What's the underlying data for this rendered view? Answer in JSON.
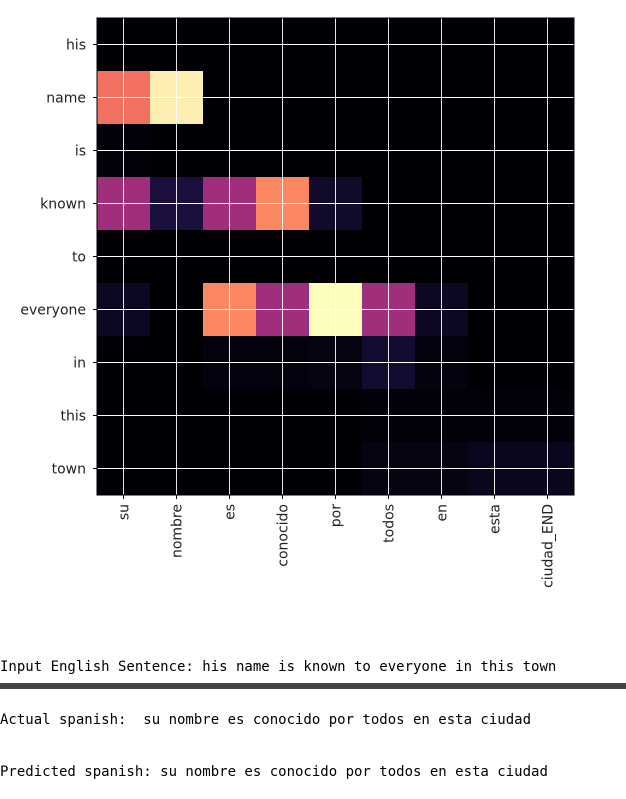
{
  "chart_data": {
    "type": "heatmap",
    "x": [
      "su",
      "nombre",
      "es",
      "conocido",
      "por",
      "todos",
      "en",
      "esta",
      "ciudad_END"
    ],
    "y": [
      "his",
      "name",
      "is",
      "known",
      "to",
      "everyone",
      "in",
      "this",
      "town"
    ],
    "values": [
      [
        0.0,
        0.0,
        0.0,
        0.0,
        0.0,
        0.0,
        0.0,
        0.0,
        0.0
      ],
      [
        0.7,
        0.97,
        0.0,
        0.0,
        0.0,
        0.0,
        0.0,
        0.0,
        0.0
      ],
      [
        0.01,
        0.0,
        0.0,
        0.0,
        0.0,
        0.0,
        0.0,
        0.0,
        0.0
      ],
      [
        0.45,
        0.12,
        0.45,
        0.75,
        0.08,
        0.0,
        0.0,
        0.0,
        0.0
      ],
      [
        0.0,
        0.0,
        0.0,
        0.0,
        0.0,
        0.0,
        0.0,
        0.0,
        0.0
      ],
      [
        0.06,
        0.0,
        0.75,
        0.45,
        1.0,
        0.45,
        0.06,
        0.0,
        0.0
      ],
      [
        0.0,
        0.0,
        0.02,
        0.02,
        0.03,
        0.09,
        0.02,
        0.0,
        0.0
      ],
      [
        0.0,
        0.0,
        0.0,
        0.0,
        0.0,
        0.01,
        0.01,
        0.01,
        0.01
      ],
      [
        0.0,
        0.0,
        0.0,
        0.0,
        0.0,
        0.03,
        0.03,
        0.05,
        0.05
      ]
    ],
    "colormap": "magma",
    "grid": true
  },
  "output_lines": [
    "Input English Sentence: his name is known to everyone in this town",
    "Actual spanish:  su nombre es conocido por todos en esta ciudad",
    "Predicted spanish: su nombre es conocido por todos en esta ciudad"
  ]
}
